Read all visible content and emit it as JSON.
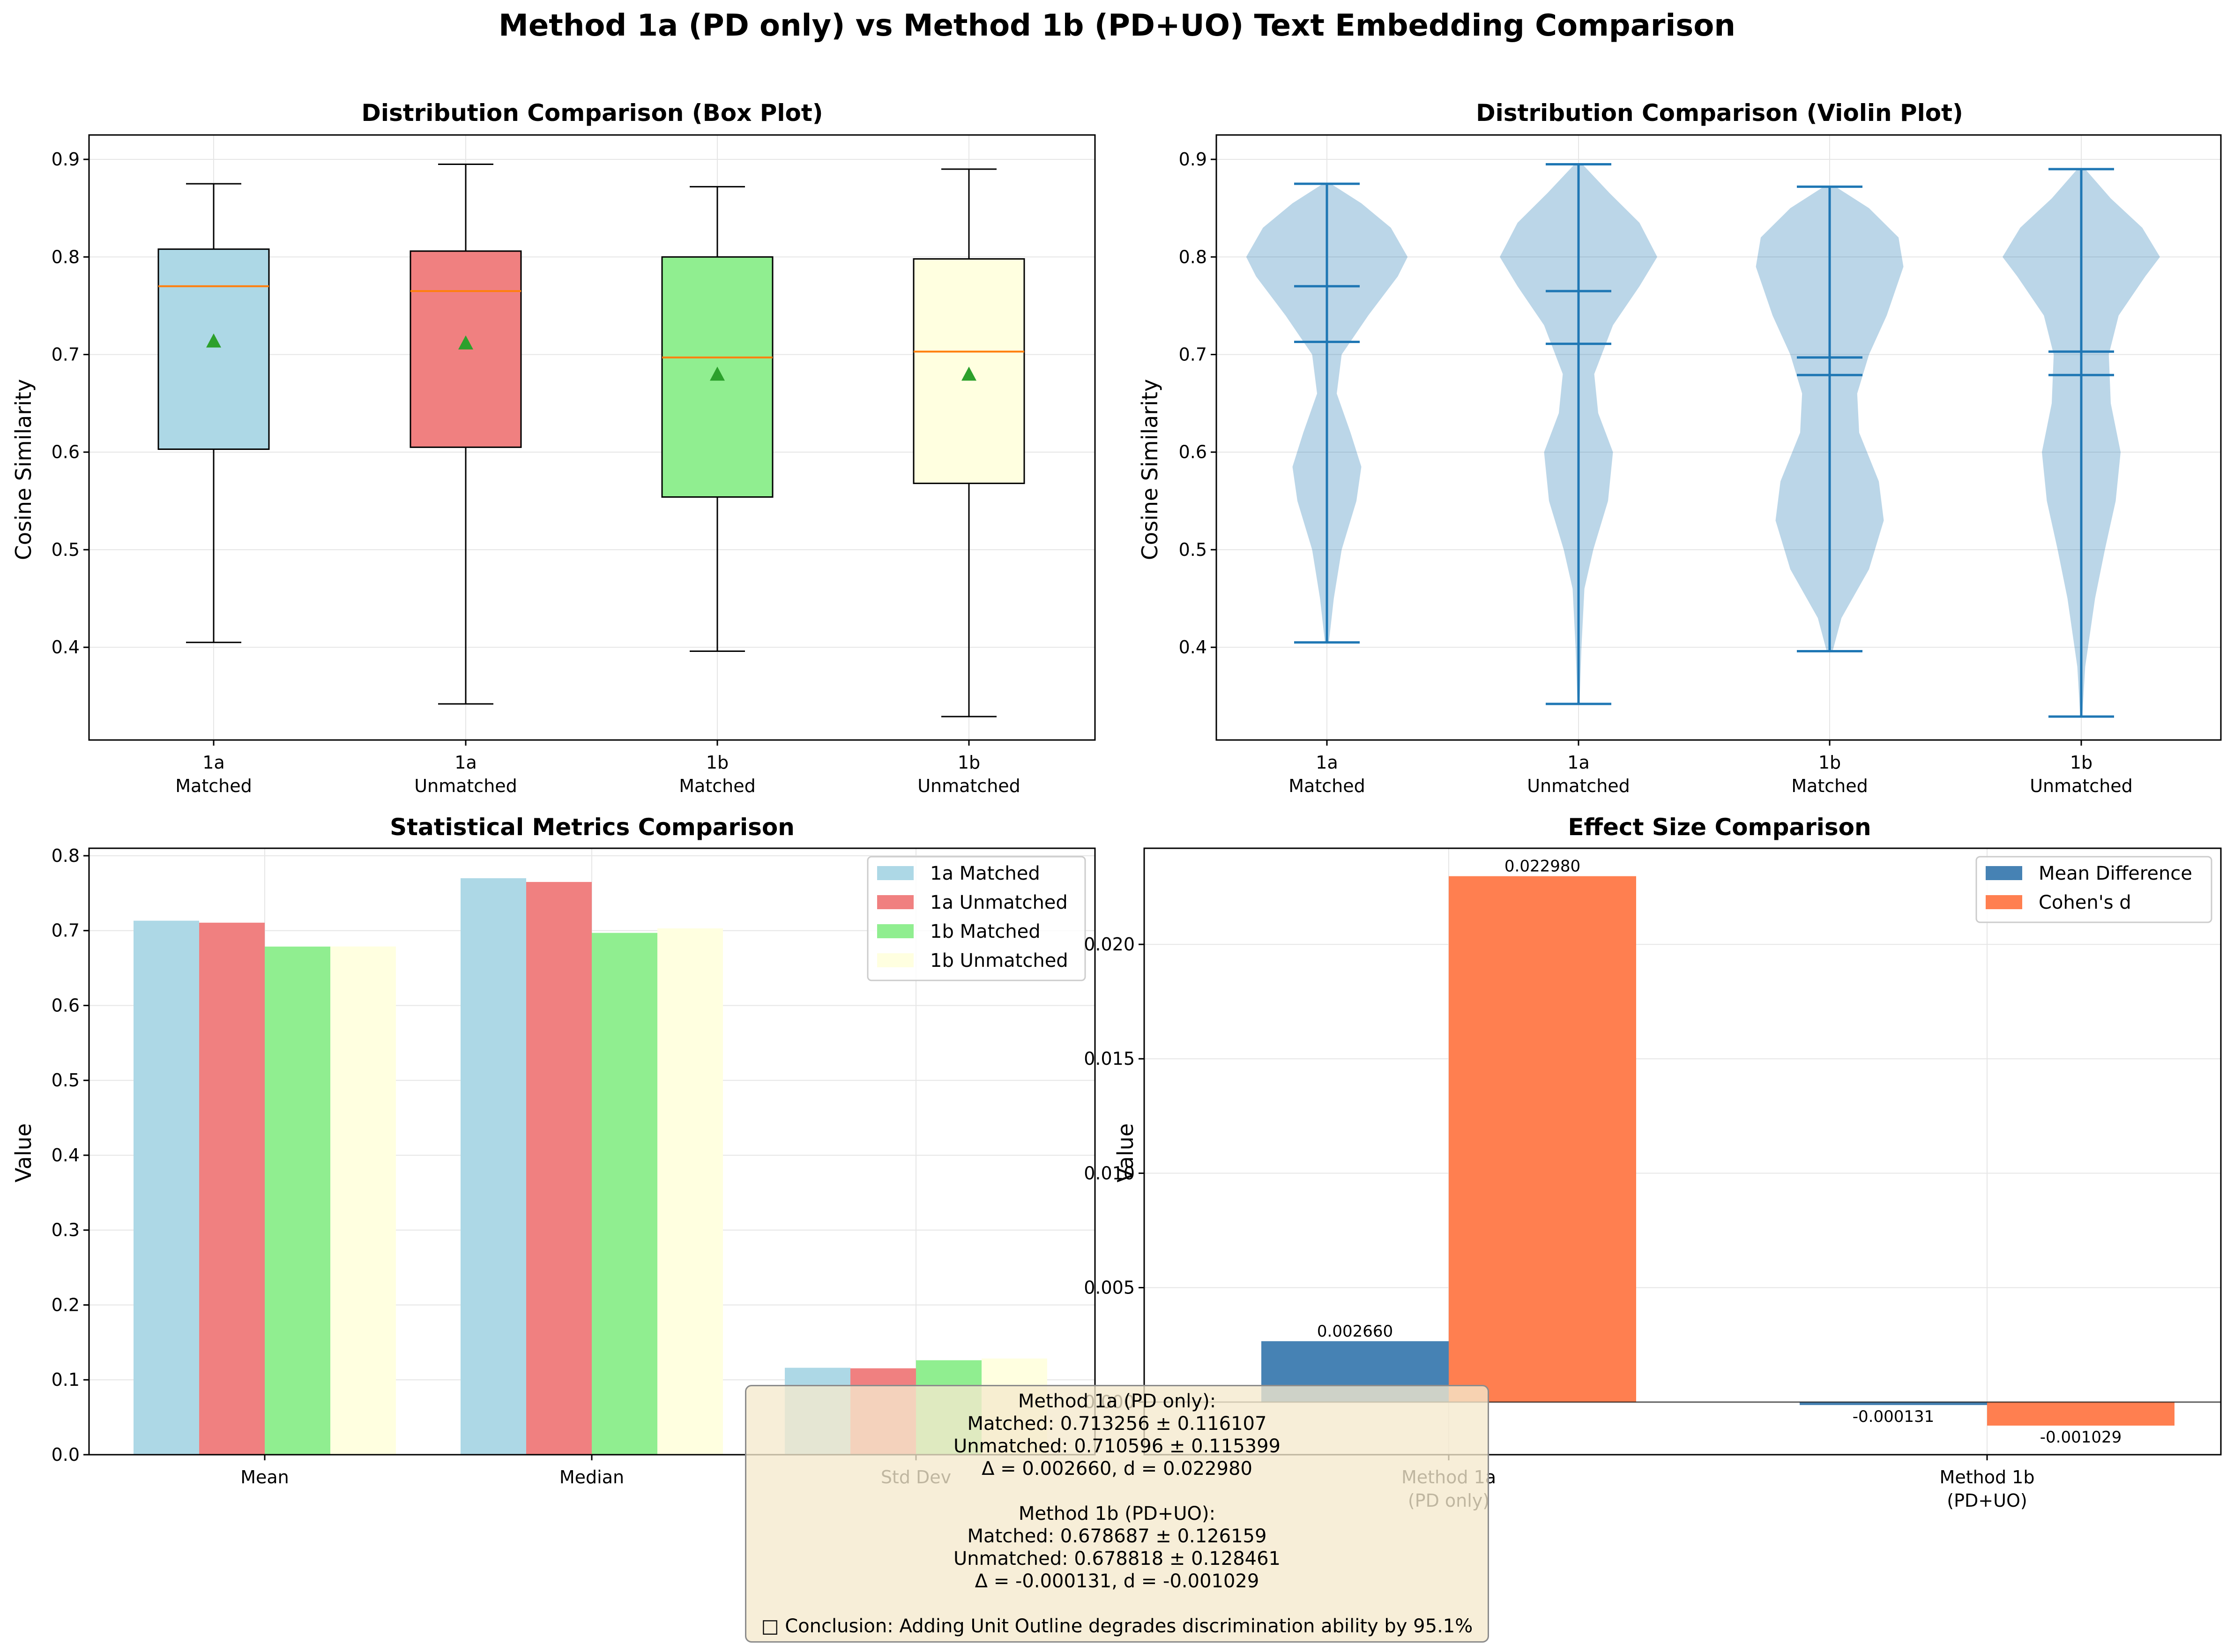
{
  "figure": {
    "title": "Method 1a (PD only) vs Method 1b (PD+UO) Text Embedding Comparison"
  },
  "colors": {
    "matched_1a": "#add8e6",
    "unmatched_1a": "#f08080",
    "matched_1b": "#90ee90",
    "unmatched_1b": "#ffffe0",
    "median_line": "#ff7f0e",
    "mean_marker": "#2ca02c",
    "violin_body": "#1f77b4",
    "mean_difference": "#4682b4",
    "cohens_d": "#ff7f50"
  },
  "chart_data": [
    {
      "type": "box",
      "title": "Distribution Comparison (Box Plot)",
      "ylabel": "Cosine Similarity",
      "ylim": [
        0.305,
        0.925
      ],
      "yticks": [
        "0.4",
        "0.5",
        "0.6",
        "0.7",
        "0.8",
        "0.9"
      ],
      "grid": true,
      "categories": [
        {
          "line1": "1a",
          "line2": "Matched"
        },
        {
          "line1": "1a",
          "line2": "Unmatched"
        },
        {
          "line1": "1b",
          "line2": "Matched"
        },
        {
          "line1": "1b",
          "line2": "Unmatched"
        }
      ],
      "boxes": [
        {
          "q1": 0.603,
          "median": 0.77,
          "q3": 0.808,
          "whisker_low": 0.405,
          "whisker_high": 0.875,
          "mean": 0.713
        },
        {
          "q1": 0.605,
          "median": 0.765,
          "q3": 0.806,
          "whisker_low": 0.342,
          "whisker_high": 0.895,
          "mean": 0.711
        },
        {
          "q1": 0.554,
          "median": 0.697,
          "q3": 0.8,
          "whisker_low": 0.396,
          "whisker_high": 0.872,
          "mean": 0.679
        },
        {
          "q1": 0.568,
          "median": 0.703,
          "q3": 0.798,
          "whisker_low": 0.329,
          "whisker_high": 0.89,
          "mean": 0.679
        }
      ]
    },
    {
      "type": "violin",
      "title": "Distribution Comparison (Violin Plot)",
      "ylabel": "Cosine Similarity",
      "ylim": [
        0.305,
        0.925
      ],
      "yticks": [
        "0.4",
        "0.5",
        "0.6",
        "0.7",
        "0.8",
        "0.9"
      ],
      "grid": true,
      "categories": [
        {
          "line1": "1a",
          "line2": "Matched"
        },
        {
          "line1": "1a",
          "line2": "Unmatched"
        },
        {
          "line1": "1b",
          "line2": "Matched"
        },
        {
          "line1": "1b",
          "line2": "Unmatched"
        }
      ],
      "violins": [
        {
          "min": 0.405,
          "max": 0.875,
          "mean": 0.713,
          "median": 0.77,
          "density": [
            [
              0.405,
              0.02
            ],
            [
              0.45,
              0.07
            ],
            [
              0.5,
              0.15
            ],
            [
              0.55,
              0.3
            ],
            [
              0.585,
              0.35
            ],
            [
              0.62,
              0.24
            ],
            [
              0.66,
              0.1
            ],
            [
              0.7,
              0.15
            ],
            [
              0.74,
              0.42
            ],
            [
              0.78,
              0.72
            ],
            [
              0.8,
              0.82
            ],
            [
              0.83,
              0.65
            ],
            [
              0.855,
              0.35
            ],
            [
              0.875,
              0.04
            ]
          ]
        },
        {
          "min": 0.342,
          "max": 0.895,
          "mean": 0.711,
          "median": 0.765,
          "density": [
            [
              0.342,
              0.01
            ],
            [
              0.4,
              0.03
            ],
            [
              0.46,
              0.06
            ],
            [
              0.5,
              0.15
            ],
            [
              0.55,
              0.3
            ],
            [
              0.6,
              0.35
            ],
            [
              0.64,
              0.2
            ],
            [
              0.68,
              0.16
            ],
            [
              0.73,
              0.35
            ],
            [
              0.77,
              0.62
            ],
            [
              0.8,
              0.8
            ],
            [
              0.835,
              0.62
            ],
            [
              0.865,
              0.32
            ],
            [
              0.895,
              0.04
            ]
          ]
        },
        {
          "min": 0.396,
          "max": 0.872,
          "mean": 0.679,
          "median": 0.697,
          "density": [
            [
              0.396,
              0.03
            ],
            [
              0.43,
              0.12
            ],
            [
              0.48,
              0.4
            ],
            [
              0.53,
              0.55
            ],
            [
              0.57,
              0.5
            ],
            [
              0.62,
              0.3
            ],
            [
              0.66,
              0.28
            ],
            [
              0.7,
              0.4
            ],
            [
              0.74,
              0.58
            ],
            [
              0.79,
              0.75
            ],
            [
              0.82,
              0.7
            ],
            [
              0.85,
              0.4
            ],
            [
              0.872,
              0.06
            ]
          ]
        },
        {
          "min": 0.329,
          "max": 0.89,
          "mean": 0.679,
          "median": 0.703,
          "density": [
            [
              0.329,
              0.01
            ],
            [
              0.38,
              0.04
            ],
            [
              0.45,
              0.14
            ],
            [
              0.5,
              0.24
            ],
            [
              0.55,
              0.35
            ],
            [
              0.6,
              0.4
            ],
            [
              0.65,
              0.3
            ],
            [
              0.7,
              0.28
            ],
            [
              0.74,
              0.38
            ],
            [
              0.78,
              0.65
            ],
            [
              0.8,
              0.8
            ],
            [
              0.83,
              0.62
            ],
            [
              0.86,
              0.3
            ],
            [
              0.89,
              0.04
            ]
          ]
        }
      ]
    },
    {
      "type": "bar",
      "title": "Statistical Metrics Comparison",
      "ylabel": "Value",
      "ylim": [
        0,
        0.81
      ],
      "yticks": [
        "0.0",
        "0.1",
        "0.2",
        "0.3",
        "0.4",
        "0.5",
        "0.6",
        "0.7",
        "0.8"
      ],
      "grid": true,
      "legend_position": "top-right",
      "categories": [
        "Mean",
        "Median",
        "Std Dev"
      ],
      "series": [
        {
          "name": "1a Matched",
          "values": [
            0.713256,
            0.77,
            0.116107
          ]
        },
        {
          "name": "1a Unmatched",
          "values": [
            0.710596,
            0.765,
            0.115399
          ]
        },
        {
          "name": "1b Matched",
          "values": [
            0.678687,
            0.697,
            0.126159
          ]
        },
        {
          "name": "1b Unmatched",
          "values": [
            0.678818,
            0.703,
            0.128461
          ]
        }
      ]
    },
    {
      "type": "bar",
      "title": "Effect Size Comparison",
      "ylabel": "Value",
      "ylim": [
        -0.0023,
        0.0242
      ],
      "yticks": [
        "0.000",
        "0.005",
        "0.010",
        "0.015",
        "0.020"
      ],
      "grid": true,
      "legend_position": "top-right",
      "categories": [
        {
          "line1": "Method 1a",
          "line2": "(PD only)"
        },
        {
          "line1": "Method 1b",
          "line2": "(PD+UO)"
        }
      ],
      "series": [
        {
          "name": "Mean Difference",
          "values": [
            0.00266,
            -0.000131
          ],
          "labels": [
            "0.002660",
            "-0.000131"
          ]
        },
        {
          "name": "Cohen's d",
          "values": [
            0.02298,
            -0.001029
          ],
          "labels": [
            "0.022980",
            "-0.001029"
          ]
        }
      ]
    }
  ],
  "summary": {
    "lines": [
      "Method 1a (PD only):",
      "Matched: 0.713256 ± 0.116107",
      "Unmatched: 0.710596 ± 0.115399",
      "Δ = 0.002660, d = 0.022980",
      "",
      "Method 1b (PD+UO):",
      "Matched: 0.678687 ± 0.126159",
      "Unmatched: 0.678818 ± 0.128461",
      "Δ = -0.000131, d = -0.001029",
      "",
      "□ Conclusion: Adding Unit Outline degrades discrimination ability by 95.1%"
    ]
  }
}
